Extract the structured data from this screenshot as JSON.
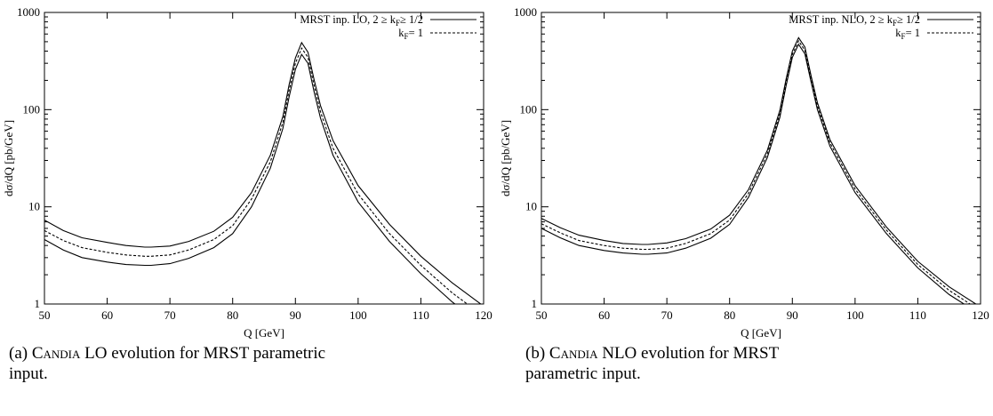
{
  "figures": [
    {
      "id": "a",
      "caption_tag": "(a)",
      "caption_name": "Candia",
      "caption_rest": "LO evolution for MRST parametric input."
    },
    {
      "id": "b",
      "caption_tag": "(b)",
      "caption_name": "Candia",
      "caption_rest": "NLO evolution for MRST parametric input."
    }
  ],
  "chart_data": [
    {
      "type": "line",
      "title": "",
      "xlabel": "Q [GeV]",
      "ylabel": "dσ/dQ [pb/GeV]",
      "xlim": [
        50,
        120
      ],
      "ylim": [
        1,
        1000
      ],
      "yscale": "log",
      "x_ticks": [
        "50",
        "60",
        "70",
        "80",
        "90",
        "100",
        "110",
        "120"
      ],
      "y_ticks": [
        "1",
        "10",
        "100",
        "1000"
      ],
      "grid": false,
      "legend_position": "top-right",
      "legend": [
        {
          "prefix": "MRST inp. LO, 2 ≥ k",
          "sub": "F",
          "suffix": "≥ 1/2",
          "style": "solid"
        },
        {
          "prefix": "k",
          "sub": "F",
          "suffix": "=  1",
          "style": "dashed"
        }
      ],
      "x": [
        50,
        53,
        56,
        60,
        63,
        66,
        67,
        70,
        73,
        77,
        80,
        83,
        86,
        88,
        89,
        90,
        91,
        92,
        93,
        94,
        96,
        100,
        105,
        110,
        115,
        120
      ],
      "series": [
        {
          "name": "MRST inp. LO, 2 ≥ kF≥ 1/2",
          "style": "solid",
          "values": [
            7.3,
            5.7,
            4.8,
            4.3,
            4.0,
            3.85,
            3.85,
            3.95,
            4.4,
            5.6,
            7.8,
            14,
            34,
            85,
            180,
            340,
            490,
            390,
            200,
            110,
            48,
            16.5,
            6.6,
            3.1,
            1.65,
            0.95
          ]
        },
        {
          "name": "MRST inp. LO, 2 ≥ kF≥ 1/2",
          "style": "solid",
          "values": [
            4.6,
            3.6,
            3.0,
            2.7,
            2.55,
            2.5,
            2.5,
            2.6,
            2.95,
            3.8,
            5.3,
            10,
            25,
            64,
            135,
            260,
            370,
            300,
            150,
            82,
            34,
            11.2,
            4.4,
            2.05,
            1.05,
            0.6
          ]
        },
        {
          "name": "kF=  1",
          "style": "dashed",
          "values": [
            5.7,
            4.5,
            3.8,
            3.4,
            3.2,
            3.1,
            3.1,
            3.2,
            3.6,
            4.6,
            6.4,
            12,
            29,
            74,
            157,
            300,
            430,
            345,
            175,
            95,
            40,
            13.5,
            5.3,
            2.5,
            1.3,
            0.75
          ]
        }
      ]
    },
    {
      "type": "line",
      "title": "",
      "xlabel": "Q [GeV]",
      "ylabel": "dσ/dQ [pb/GeV]",
      "xlim": [
        50,
        120
      ],
      "ylim": [
        1,
        1000
      ],
      "yscale": "log",
      "x_ticks": [
        "50",
        "60",
        "70",
        "80",
        "90",
        "100",
        "110",
        "120"
      ],
      "y_ticks": [
        "1",
        "10",
        "100",
        "1000"
      ],
      "grid": false,
      "legend_position": "top-right",
      "legend": [
        {
          "prefix": "MRST inp. NLO, 2 ≥ k",
          "sub": "F",
          "suffix": "≥ 1/2",
          "style": "solid"
        },
        {
          "prefix": "k",
          "sub": "F",
          "suffix": "=  1",
          "style": "dashed"
        }
      ],
      "x": [
        50,
        53,
        56,
        60,
        63,
        66,
        67,
        70,
        73,
        77,
        80,
        83,
        86,
        88,
        89,
        90,
        91,
        92,
        93,
        94,
        96,
        100,
        105,
        110,
        115,
        120
      ],
      "series": [
        {
          "name": "MRST inp. NLO, 2 ≥ kF≥ 1/2",
          "style": "solid",
          "values": [
            7.6,
            6.1,
            5.1,
            4.5,
            4.2,
            4.1,
            4.1,
            4.25,
            4.7,
            5.9,
            8.2,
            15,
            38,
            98,
            205,
            400,
            550,
            440,
            220,
            118,
            49,
            16.5,
            6.2,
            2.75,
            1.5,
            0.93
          ]
        },
        {
          "name": "MRST inp. NLO, 2 ≥ kF≥ 1/2",
          "style": "solid",
          "values": [
            6.0,
            4.8,
            4.0,
            3.55,
            3.35,
            3.25,
            3.25,
            3.35,
            3.75,
            4.75,
            6.6,
            12.5,
            32,
            83,
            175,
            345,
            470,
            375,
            190,
            100,
            42,
            14,
            5.3,
            2.35,
            1.25,
            0.78
          ]
        },
        {
          "name": "kF=  1",
          "style": "dashed",
          "values": [
            6.7,
            5.4,
            4.5,
            4.0,
            3.75,
            3.65,
            3.65,
            3.75,
            4.2,
            5.3,
            7.3,
            13.7,
            35,
            90,
            190,
            370,
            510,
            408,
            205,
            109,
            45.5,
            15.2,
            5.75,
            2.55,
            1.38,
            0.85
          ]
        }
      ]
    }
  ]
}
